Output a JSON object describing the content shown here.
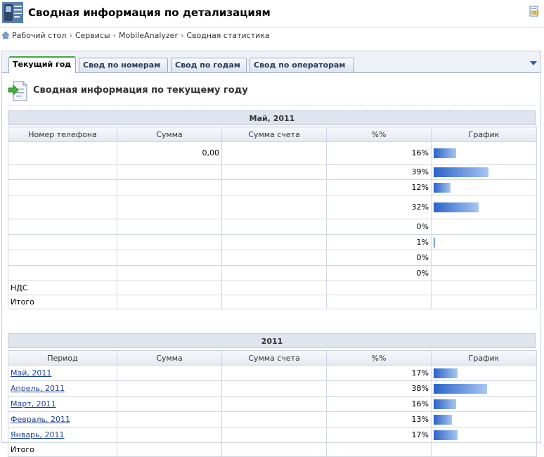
{
  "header": {
    "title": "Сводная информация по детализациям",
    "app_icon": "phone-detail-icon",
    "tool_icon": "link-icon"
  },
  "breadcrumb": [
    "Рабочий стол",
    "Сервисы",
    "MobileAnalyzer",
    "Сводная статистика"
  ],
  "tabs": [
    {
      "label": "Текущий год",
      "active": true
    },
    {
      "label": "Свод по номерам",
      "active": false
    },
    {
      "label": "Свод по годам",
      "active": false
    },
    {
      "label": "Свод по операторам",
      "active": false
    }
  ],
  "section": {
    "title": "Сводная информация по текущему году",
    "icon": "green-arrow-document-icon"
  },
  "month_table": {
    "group": "Май, 2011",
    "columns": [
      "Номер телефона",
      "Сумма",
      "Сумма счета",
      "%%",
      "График"
    ],
    "rows": [
      {
        "phone": "",
        "sum": "0,00",
        "bill": "",
        "pct": "16%",
        "fraction": 0.16
      },
      {
        "phone": "",
        "sum": "",
        "bill": "",
        "pct": "39%",
        "fraction": 0.39
      },
      {
        "phone": "",
        "sum": "",
        "bill": "",
        "pct": "12%",
        "fraction": 0.12
      },
      {
        "phone": "",
        "sum": "",
        "bill": "",
        "pct": "32%",
        "fraction": 0.32
      },
      {
        "phone": "",
        "sum": "",
        "bill": "",
        "pct": "0%",
        "fraction": 0
      },
      {
        "phone": "",
        "sum": "",
        "bill": "",
        "pct": "1%",
        "fraction": 0.01
      },
      {
        "phone": "",
        "sum": "",
        "bill": "",
        "pct": "0%",
        "fraction": 0
      },
      {
        "phone": "",
        "sum": "",
        "bill": "",
        "pct": "0%",
        "fraction": 0
      },
      {
        "phone": "НДС",
        "sum": "",
        "bill": "",
        "pct": "",
        "fraction": 0
      },
      {
        "phone": "Итого",
        "sum": "",
        "bill": "",
        "pct": "",
        "fraction": 0
      }
    ]
  },
  "year_table": {
    "group": "2011",
    "columns": [
      "Период",
      "Сумма",
      "Сумма счета",
      "%%",
      "График"
    ],
    "rows": [
      {
        "period": "Май, 2011",
        "link": true,
        "sum": "",
        "bill": "",
        "pct": "17%",
        "fraction": 0.17
      },
      {
        "period": "Апрель, 2011",
        "link": true,
        "sum": "",
        "bill": "",
        "pct": "38%",
        "fraction": 0.38
      },
      {
        "period": "Март, 2011",
        "link": true,
        "sum": "",
        "bill": "",
        "pct": "16%",
        "fraction": 0.16
      },
      {
        "period": "Февраль, 2011",
        "link": true,
        "sum": "",
        "bill": "",
        "pct": "13%",
        "fraction": 0.13
      },
      {
        "period": "Январь, 2011",
        "link": true,
        "sum": "",
        "bill": "",
        "pct": "17%",
        "fraction": 0.17
      },
      {
        "period": "Итого",
        "link": false,
        "sum": "",
        "bill": "",
        "pct": "",
        "fraction": 0
      }
    ]
  },
  "colors": {
    "accent_tab": "#46a63a",
    "bar_start": "#2a63c9",
    "bar_end": "#a7c6f2",
    "link": "#1d3f9a"
  }
}
